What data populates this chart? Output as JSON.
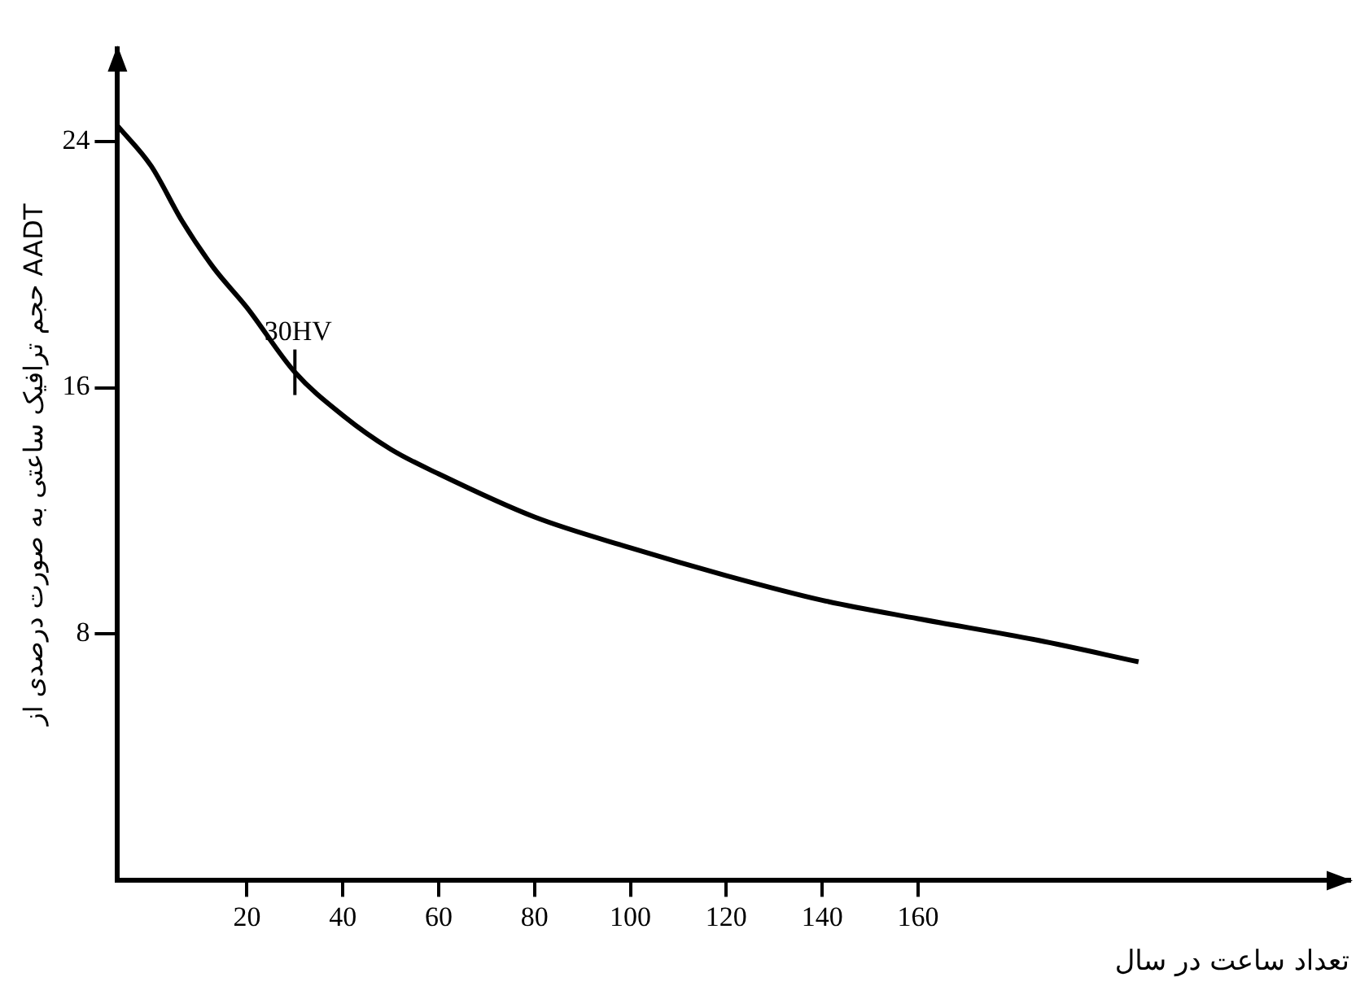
{
  "chart_data": {
    "type": "line",
    "xlabel": "تعداد ساعت در سال",
    "ylabel": "حجم ترافیک ساعتی به صورت درصدی از AADT",
    "x": [
      -7,
      0,
      6.5,
      13,
      20,
      30,
      40,
      50,
      60,
      80,
      100,
      120,
      140,
      160,
      185,
      206
    ],
    "series": [
      {
        "color": "#000000",
        "values": [
          24.5,
          23.2,
          21.4,
          19.9,
          18.6,
          16.5,
          15.1,
          14.0,
          13.2,
          11.8,
          10.8,
          9.9,
          9.1,
          8.5,
          7.8,
          7.1
        ]
      }
    ],
    "xlim": [
      -7,
      250
    ],
    "ylim": [
      0,
      27
    ],
    "xticks": [
      20,
      40,
      60,
      80,
      100,
      120,
      140,
      160
    ],
    "yticks": [
      8,
      16,
      24
    ],
    "annotations": [
      {
        "text": "30HV",
        "x": 30,
        "y": 16.5
      }
    ],
    "grid": false,
    "legend": false,
    "marker": "none",
    "line_style": "solid"
  }
}
